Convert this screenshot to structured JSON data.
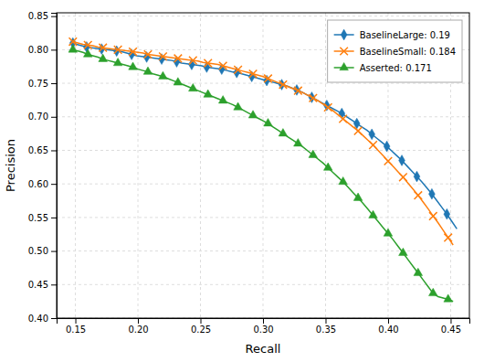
{
  "chart_data": {
    "type": "line",
    "x_label": "Recall",
    "y_label": "Precision",
    "xlim": [
      0.135,
      0.465
    ],
    "ylim": [
      0.4,
      0.855
    ],
    "xticks": [
      0.15,
      {
        "value": 0.2,
        "label": "0.20"
      },
      0.25,
      {
        "value": 0.3,
        "label": "0.30"
      },
      0.35,
      {
        "value": 0.4,
        "label": "0.40"
      },
      0.45
    ],
    "yticks": [
      {
        "value": 0.4,
        "label": "0.40"
      },
      0.45,
      {
        "value": 0.5,
        "label": "0.50"
      },
      0.55,
      {
        "value": 0.6,
        "label": "0.60"
      },
      0.65,
      {
        "value": 0.7,
        "label": "0.70"
      },
      0.75,
      {
        "value": 0.8,
        "label": "0.80"
      },
      0.85
    ],
    "grid": true,
    "legend": "upper right",
    "series": [
      {
        "name": "BaselineLarge: 0.19",
        "marker": "diamond",
        "x": [
          0.148,
          0.151,
          0.155,
          0.159,
          0.163,
          0.167,
          0.171,
          0.175,
          0.179,
          0.183,
          0.187,
          0.191,
          0.195,
          0.199,
          0.203,
          0.207,
          0.211,
          0.215,
          0.219,
          0.223,
          0.227,
          0.231,
          0.235,
          0.239,
          0.243,
          0.247,
          0.251,
          0.255,
          0.259,
          0.263,
          0.267,
          0.271,
          0.275,
          0.279,
          0.283,
          0.287,
          0.291,
          0.295,
          0.299,
          0.303,
          0.307,
          0.311,
          0.315,
          0.319,
          0.323,
          0.327,
          0.331,
          0.335,
          0.339,
          0.343,
          0.347,
          0.351,
          0.355,
          0.359,
          0.363,
          0.367,
          0.371,
          0.375,
          0.379,
          0.383,
          0.387,
          0.391,
          0.395,
          0.399,
          0.403,
          0.407,
          0.411,
          0.415,
          0.419,
          0.423,
          0.427,
          0.431,
          0.435,
          0.439,
          0.443,
          0.447,
          0.451,
          0.455
        ],
        "values": [
          0.81,
          0.808,
          0.806,
          0.804,
          0.803,
          0.802,
          0.801,
          0.8,
          0.799,
          0.798,
          0.797,
          0.795,
          0.793,
          0.791,
          0.79,
          0.789,
          0.788,
          0.787,
          0.786,
          0.785,
          0.784,
          0.782,
          0.78,
          0.779,
          0.778,
          0.777,
          0.776,
          0.774,
          0.773,
          0.772,
          0.771,
          0.769,
          0.767,
          0.766,
          0.764,
          0.762,
          0.76,
          0.758,
          0.756,
          0.754,
          0.752,
          0.75,
          0.748,
          0.746,
          0.743,
          0.74,
          0.737,
          0.733,
          0.729,
          0.725,
          0.721,
          0.717,
          0.713,
          0.709,
          0.705,
          0.7,
          0.695,
          0.69,
          0.685,
          0.68,
          0.674,
          0.668,
          0.662,
          0.656,
          0.649,
          0.642,
          0.635,
          0.627,
          0.619,
          0.611,
          0.603,
          0.594,
          0.585,
          0.575,
          0.565,
          0.555,
          0.544,
          0.533
        ]
      },
      {
        "name": "BaselineSmall: 0.184",
        "marker": "x",
        "x": [
          0.148,
          0.152,
          0.156,
          0.16,
          0.164,
          0.168,
          0.172,
          0.176,
          0.18,
          0.184,
          0.188,
          0.192,
          0.196,
          0.2,
          0.204,
          0.208,
          0.212,
          0.216,
          0.22,
          0.224,
          0.228,
          0.232,
          0.236,
          0.24,
          0.244,
          0.248,
          0.252,
          0.256,
          0.26,
          0.264,
          0.268,
          0.272,
          0.276,
          0.28,
          0.284,
          0.288,
          0.292,
          0.296,
          0.3,
          0.304,
          0.308,
          0.312,
          0.316,
          0.32,
          0.324,
          0.328,
          0.332,
          0.336,
          0.34,
          0.344,
          0.348,
          0.352,
          0.356,
          0.36,
          0.364,
          0.368,
          0.372,
          0.376,
          0.38,
          0.384,
          0.388,
          0.392,
          0.396,
          0.4,
          0.404,
          0.408,
          0.412,
          0.416,
          0.42,
          0.424,
          0.428,
          0.432,
          0.436,
          0.44,
          0.444,
          0.448,
          0.452
        ],
        "values": [
          0.812,
          0.81,
          0.808,
          0.807,
          0.806,
          0.804,
          0.803,
          0.802,
          0.801,
          0.8,
          0.799,
          0.798,
          0.797,
          0.796,
          0.795,
          0.793,
          0.792,
          0.791,
          0.79,
          0.789,
          0.788,
          0.787,
          0.786,
          0.785,
          0.784,
          0.783,
          0.781,
          0.78,
          0.779,
          0.778,
          0.776,
          0.774,
          0.772,
          0.77,
          0.768,
          0.766,
          0.764,
          0.762,
          0.76,
          0.757,
          0.754,
          0.751,
          0.748,
          0.745,
          0.742,
          0.739,
          0.736,
          0.732,
          0.728,
          0.724,
          0.719,
          0.714,
          0.709,
          0.703,
          0.697,
          0.691,
          0.685,
          0.679,
          0.672,
          0.665,
          0.658,
          0.65,
          0.642,
          0.634,
          0.626,
          0.618,
          0.61,
          0.601,
          0.592,
          0.583,
          0.573,
          0.563,
          0.552,
          0.542,
          0.531,
          0.52,
          0.509
        ]
      },
      {
        "name": "Asserted: 0.171",
        "marker": "triangle",
        "x": [
          0.148,
          0.152,
          0.156,
          0.16,
          0.164,
          0.168,
          0.172,
          0.176,
          0.18,
          0.184,
          0.188,
          0.192,
          0.196,
          0.2,
          0.204,
          0.208,
          0.212,
          0.216,
          0.22,
          0.224,
          0.228,
          0.232,
          0.236,
          0.24,
          0.244,
          0.248,
          0.252,
          0.256,
          0.26,
          0.264,
          0.268,
          0.272,
          0.276,
          0.28,
          0.284,
          0.288,
          0.292,
          0.296,
          0.3,
          0.304,
          0.308,
          0.312,
          0.316,
          0.32,
          0.324,
          0.328,
          0.332,
          0.336,
          0.34,
          0.344,
          0.348,
          0.352,
          0.356,
          0.36,
          0.364,
          0.368,
          0.372,
          0.376,
          0.38,
          0.384,
          0.388,
          0.392,
          0.396,
          0.4,
          0.404,
          0.408,
          0.412,
          0.416,
          0.42,
          0.424,
          0.428,
          0.432,
          0.436,
          0.44,
          0.444,
          0.448,
          0.452
        ],
        "values": [
          0.8,
          0.798,
          0.796,
          0.793,
          0.791,
          0.789,
          0.786,
          0.784,
          0.782,
          0.78,
          0.778,
          0.776,
          0.774,
          0.771,
          0.769,
          0.767,
          0.764,
          0.762,
          0.76,
          0.757,
          0.754,
          0.751,
          0.748,
          0.745,
          0.742,
          0.739,
          0.736,
          0.733,
          0.73,
          0.727,
          0.724,
          0.721,
          0.718,
          0.714,
          0.71,
          0.706,
          0.702,
          0.698,
          0.694,
          0.69,
          0.685,
          0.68,
          0.675,
          0.67,
          0.665,
          0.66,
          0.655,
          0.649,
          0.643,
          0.637,
          0.631,
          0.624,
          0.617,
          0.61,
          0.603,
          0.595,
          0.587,
          0.579,
          0.571,
          0.562,
          0.553,
          0.544,
          0.535,
          0.526,
          0.517,
          0.507,
          0.497,
          0.487,
          0.477,
          0.467,
          0.457,
          0.447,
          0.437,
          0.432,
          0.43,
          0.428,
          0.425
        ]
      }
    ]
  }
}
